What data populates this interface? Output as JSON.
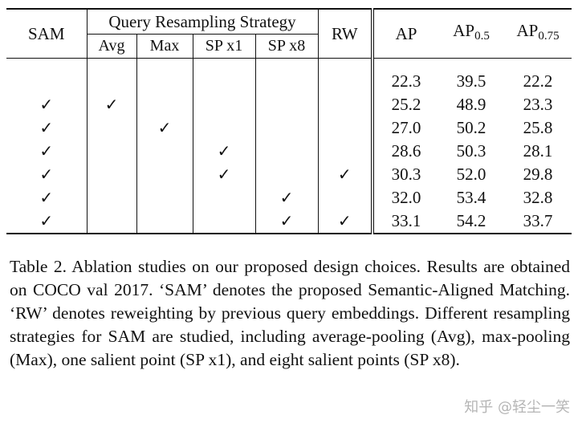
{
  "table": {
    "headers": {
      "sam": "SAM",
      "query_group": "Query Resampling Strategy",
      "avg": "Avg",
      "max": "Max",
      "sp1": "SP x1",
      "sp8": "SP x8",
      "rw": "RW",
      "ap": "AP",
      "ap50_base": "AP",
      "ap50_sub": "0.5",
      "ap75_base": "AP",
      "ap75_sub": "0.75"
    },
    "rows": [
      {
        "sam": "",
        "avg": "",
        "max": "",
        "sp1": "",
        "sp8": "",
        "rw": "",
        "ap": "22.3",
        "ap50": "39.5",
        "ap75": "22.2"
      },
      {
        "sam": "✓",
        "avg": "✓",
        "max": "",
        "sp1": "",
        "sp8": "",
        "rw": "",
        "ap": "25.2",
        "ap50": "48.9",
        "ap75": "23.3"
      },
      {
        "sam": "✓",
        "avg": "",
        "max": "✓",
        "sp1": "",
        "sp8": "",
        "rw": "",
        "ap": "27.0",
        "ap50": "50.2",
        "ap75": "25.8"
      },
      {
        "sam": "✓",
        "avg": "",
        "max": "",
        "sp1": "✓",
        "sp8": "",
        "rw": "",
        "ap": "28.6",
        "ap50": "50.3",
        "ap75": "28.1"
      },
      {
        "sam": "✓",
        "avg": "",
        "max": "",
        "sp1": "✓",
        "sp8": "",
        "rw": "✓",
        "ap": "30.3",
        "ap50": "52.0",
        "ap75": "29.8"
      },
      {
        "sam": "✓",
        "avg": "",
        "max": "",
        "sp1": "",
        "sp8": "✓",
        "rw": "",
        "ap": "32.0",
        "ap50": "53.4",
        "ap75": "32.8"
      },
      {
        "sam": "✓",
        "avg": "",
        "max": "",
        "sp1": "",
        "sp8": "✓",
        "rw": "✓",
        "ap": "33.1",
        "ap50": "54.2",
        "ap75": "33.7"
      }
    ]
  },
  "caption": "Table 2. Ablation studies on our proposed design choices. Results are obtained on COCO val 2017. ‘SAM’ denotes the proposed Semantic-Aligned Matching. ‘RW’ denotes reweighting by previous query embeddings. Different resampling strategies for SAM are studied, including average-pooling (Avg), max-pooling (Max), one salient point (SP x1), and eight salient points (SP x8).",
  "watermark": "知乎 @轻尘一笑"
}
